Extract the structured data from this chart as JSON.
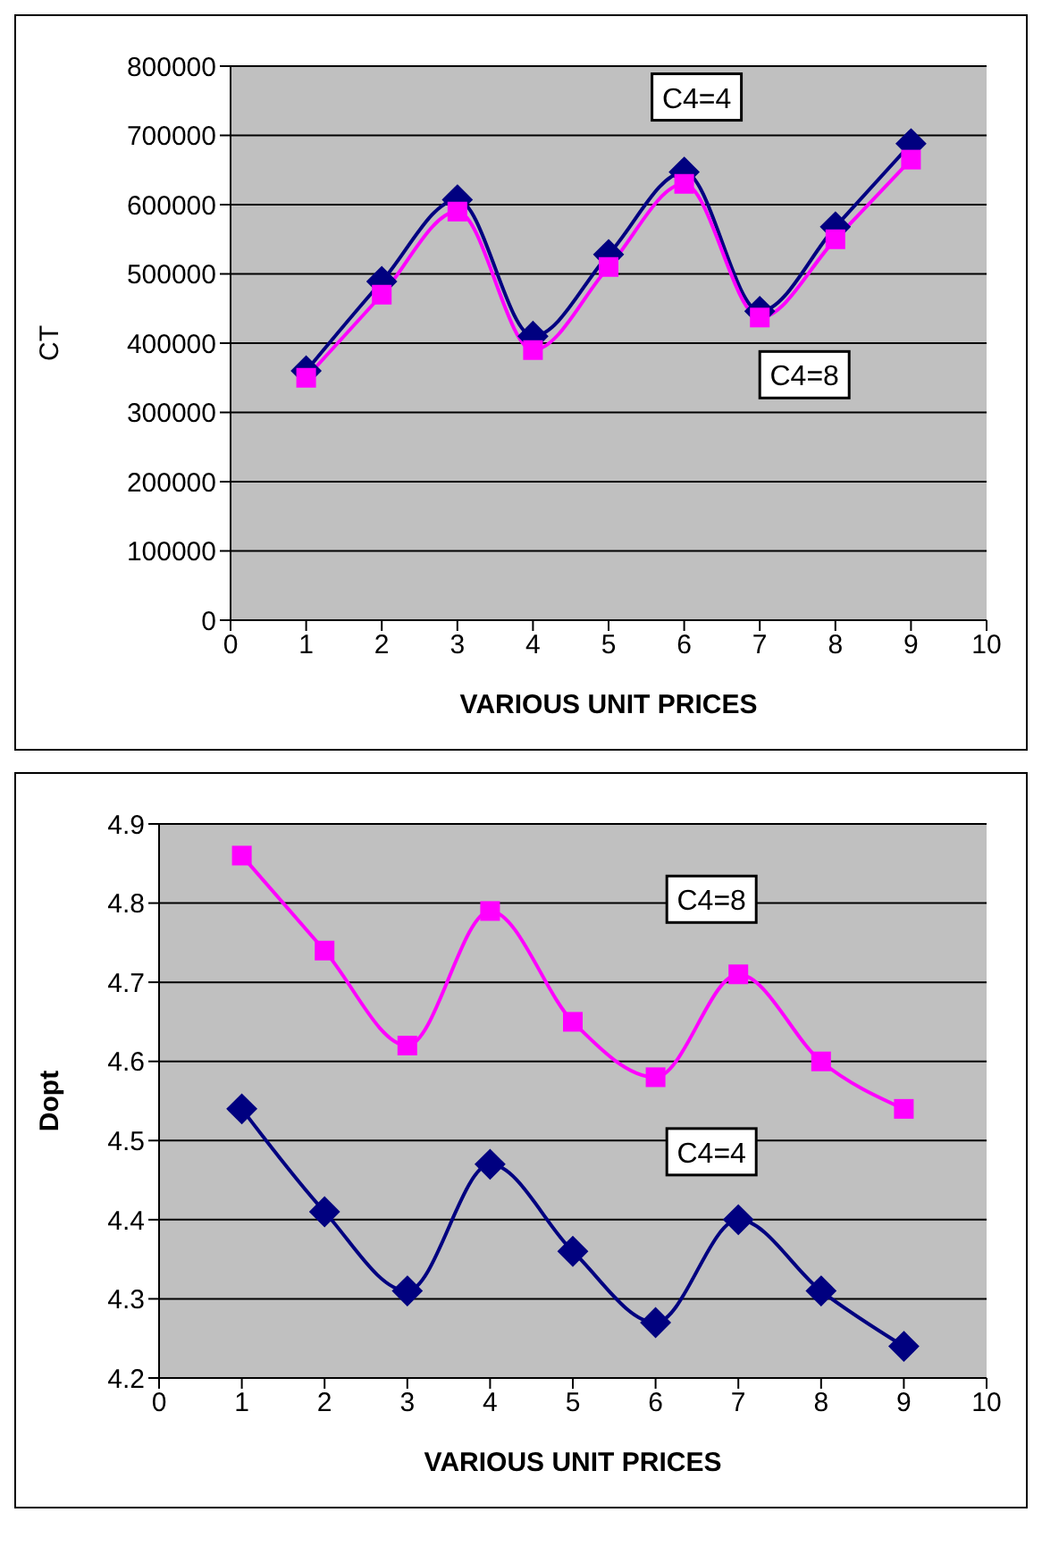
{
  "chart_data": [
    {
      "type": "line",
      "xlabel": "VARIOUS UNIT PRICES",
      "ylabel": "CT",
      "x": [
        1,
        2,
        3,
        4,
        5,
        6,
        7,
        8,
        9
      ],
      "xlim": [
        0,
        10
      ],
      "xticks": [
        0,
        1,
        2,
        3,
        4,
        5,
        6,
        7,
        8,
        9,
        10
      ],
      "ylim": [
        0,
        800000
      ],
      "yticks": [
        0,
        100000,
        200000,
        300000,
        400000,
        500000,
        600000,
        700000,
        800000
      ],
      "grid": "y",
      "line_style": "solid",
      "series": [
        {
          "name": "C4=4",
          "color": "#000080",
          "marker": "diamond",
          "values": [
            360000,
            489000,
            607000,
            410000,
            528000,
            647000,
            446000,
            568000,
            688000
          ]
        },
        {
          "name": "C4=8",
          "color": "#ff00ff",
          "marker": "square",
          "values": [
            350000,
            470000,
            590000,
            390000,
            510000,
            630000,
            437000,
            550000,
            665000
          ]
        }
      ]
    },
    {
      "type": "line",
      "xlabel": "VARIOUS UNIT PRICES",
      "ylabel": "Dopt",
      "x": [
        1,
        2,
        3,
        4,
        5,
        6,
        7,
        8,
        9
      ],
      "xlim": [
        0,
        10
      ],
      "xticks": [
        0,
        1,
        2,
        3,
        4,
        5,
        6,
        7,
        8,
        9,
        10
      ],
      "ylim": [
        4.2,
        4.9
      ],
      "yticks": [
        4.2,
        4.3,
        4.4,
        4.5,
        4.6,
        4.7,
        4.8,
        4.9
      ],
      "grid": "y",
      "line_style": "solid",
      "series": [
        {
          "name": "C4=4",
          "color": "#000080",
          "marker": "diamond",
          "values": [
            4.54,
            4.41,
            4.31,
            4.47,
            4.36,
            4.27,
            4.4,
            4.31,
            4.24
          ]
        },
        {
          "name": "C4=8",
          "color": "#ff00ff",
          "marker": "square",
          "values": [
            4.86,
            4.74,
            4.62,
            4.79,
            4.65,
            4.58,
            4.71,
            4.6,
            4.54
          ]
        }
      ]
    }
  ]
}
